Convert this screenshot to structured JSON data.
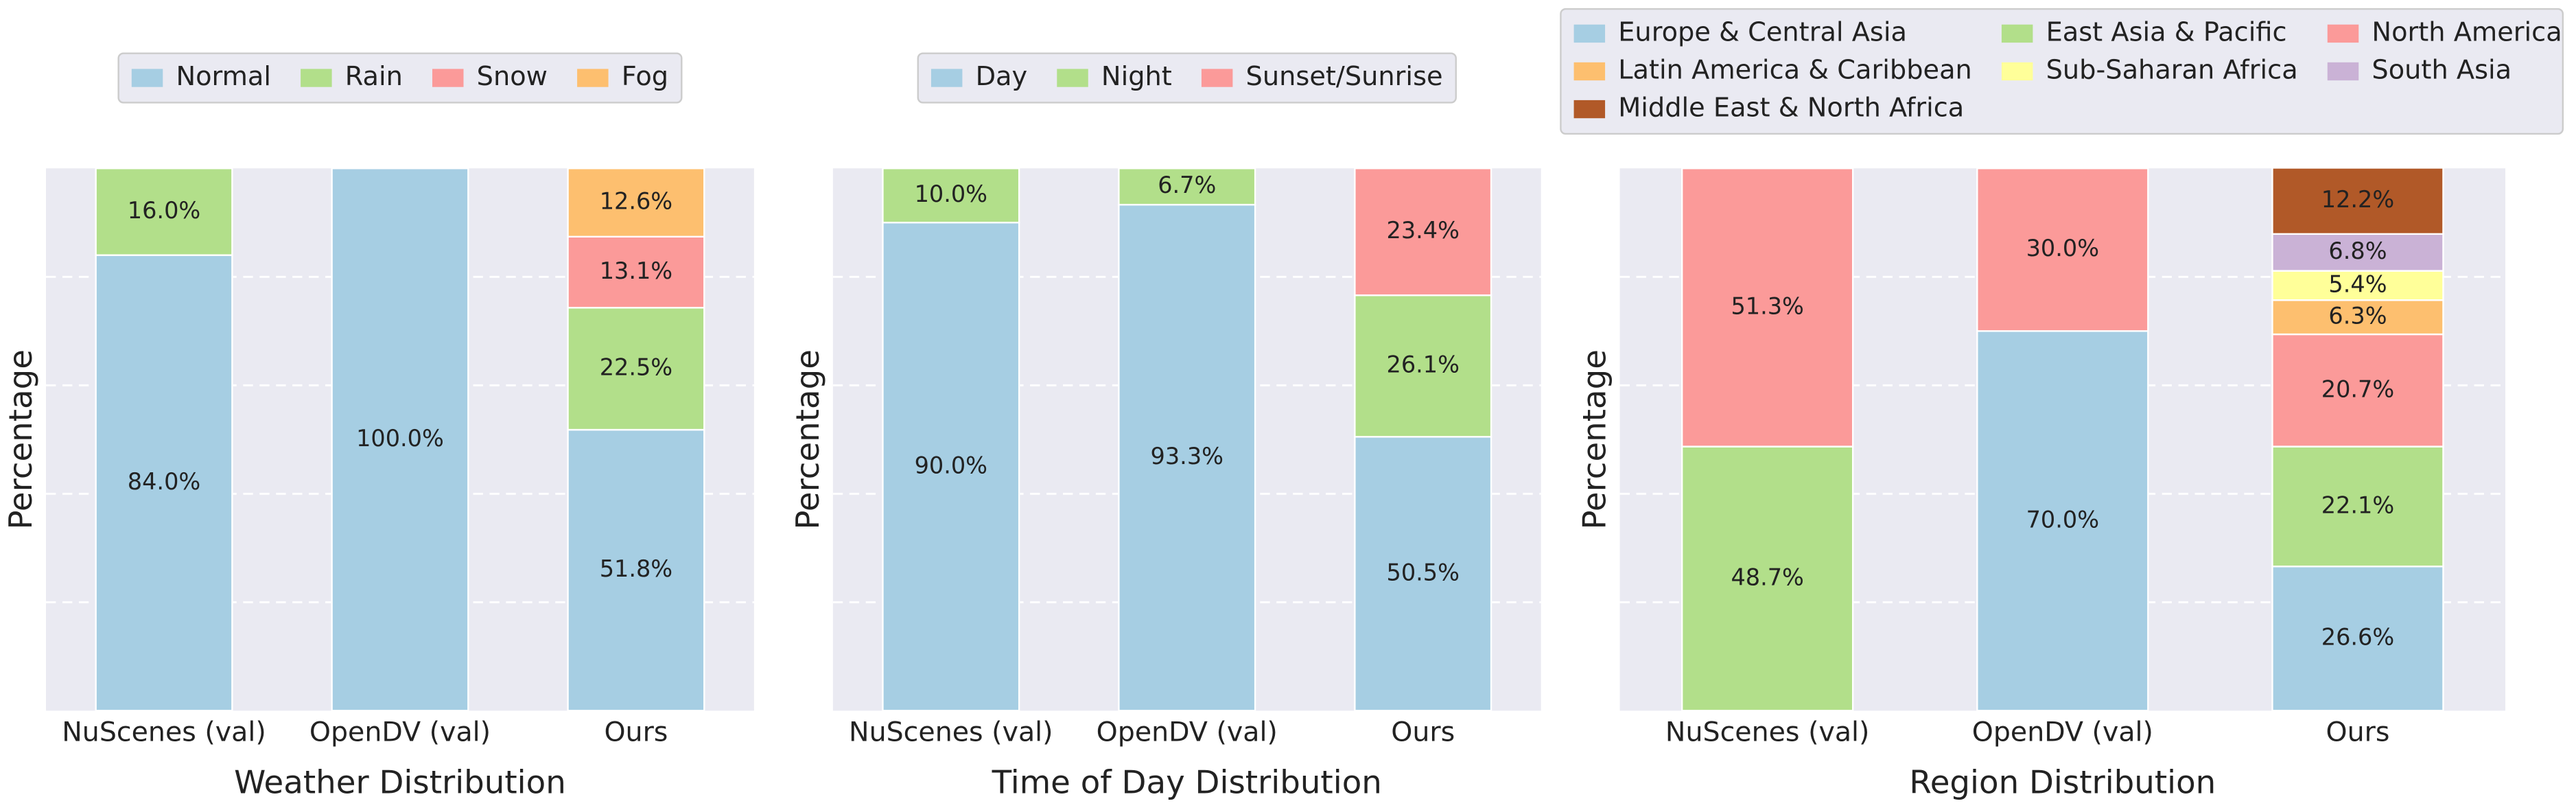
{
  "chart_data": [
    {
      "type": "bar",
      "stacked": true,
      "xlabel": "Weather Distribution",
      "ylabel": "Percentage",
      "categories": [
        "NuScenes (val)",
        "OpenDV (val)",
        "Ours"
      ],
      "ylim": [
        0,
        100
      ],
      "yticks": [
        20,
        40,
        60,
        80
      ],
      "show_ytick_labels": false,
      "grid": true,
      "legend_ncol": 4,
      "series": [
        {
          "name": "Normal",
          "color": "#a6cee3",
          "values": [
            84.0,
            100.0,
            51.8
          ],
          "value_labels": [
            "84.0%",
            "100.0%",
            "51.8%"
          ]
        },
        {
          "name": "Rain",
          "color": "#b2df8a",
          "values": [
            16.0,
            null,
            22.5
          ],
          "value_labels": [
            "16.0%",
            null,
            "22.5%"
          ]
        },
        {
          "name": "Snow",
          "color": "#fb9a99",
          "values": [
            null,
            null,
            13.1
          ],
          "value_labels": [
            null,
            null,
            "13.1%"
          ]
        },
        {
          "name": "Fog",
          "color": "#fdbf6f",
          "values": [
            null,
            null,
            12.6
          ],
          "value_labels": [
            null,
            null,
            "12.6%"
          ]
        }
      ]
    },
    {
      "type": "bar",
      "stacked": true,
      "xlabel": "Time of Day Distribution",
      "ylabel": "Percentage",
      "categories": [
        "NuScenes (val)",
        "OpenDV (val)",
        "Ours"
      ],
      "ylim": [
        0,
        100
      ],
      "yticks": [
        20,
        40,
        60,
        80
      ],
      "show_ytick_labels": false,
      "grid": true,
      "legend_ncol": 3,
      "series": [
        {
          "name": "Day",
          "color": "#a6cee3",
          "values": [
            90.0,
            93.3,
            50.5
          ],
          "value_labels": [
            "90.0%",
            "93.3%",
            "50.5%"
          ]
        },
        {
          "name": "Night",
          "color": "#b2df8a",
          "values": [
            10.0,
            6.7,
            26.1
          ],
          "value_labels": [
            "10.0%",
            "6.7%",
            "26.1%"
          ]
        },
        {
          "name": "Sunset/Sunrise",
          "color": "#fb9a99",
          "values": [
            null,
            null,
            23.4
          ],
          "value_labels": [
            null,
            null,
            "23.4%"
          ]
        }
      ]
    },
    {
      "type": "bar",
      "stacked": true,
      "xlabel": "Region Distribution",
      "ylabel": "Percentage",
      "categories": [
        "NuScenes (val)",
        "OpenDV (val)",
        "Ours"
      ],
      "ylim": [
        0,
        100
      ],
      "yticks": [
        20,
        40,
        60,
        80
      ],
      "show_ytick_labels": false,
      "grid": true,
      "legend_ncol": 3,
      "series": [
        {
          "name": "Europe & Central Asia",
          "color": "#a6cee3",
          "values": [
            null,
            70.0,
            26.6
          ],
          "value_labels": [
            null,
            "70.0%",
            "26.6%"
          ]
        },
        {
          "name": "East Asia & Pacific",
          "color": "#b2df8a",
          "values": [
            48.7,
            null,
            22.1
          ],
          "value_labels": [
            "48.7%",
            null,
            "22.1%"
          ]
        },
        {
          "name": "North America",
          "color": "#fb9a99",
          "values": [
            51.3,
            30.0,
            20.7
          ],
          "value_labels": [
            "51.3%",
            "30.0%",
            "20.7%"
          ]
        },
        {
          "name": "Latin America & Caribbean",
          "color": "#fdbf6f",
          "values": [
            null,
            null,
            6.3
          ],
          "value_labels": [
            null,
            null,
            "6.3%"
          ]
        },
        {
          "name": "Sub-Saharan Africa",
          "color": "#ffff99",
          "values": [
            null,
            null,
            5.4
          ],
          "value_labels": [
            null,
            null,
            "5.4%"
          ]
        },
        {
          "name": "South Asia",
          "color": "#cab2d6",
          "values": [
            null,
            null,
            6.8
          ],
          "value_labels": [
            null,
            null,
            "6.8%"
          ]
        },
        {
          "name": "Middle East & North Africa",
          "color": "#b15928",
          "values": [
            null,
            null,
            12.2
          ],
          "value_labels": [
            null,
            null,
            "12.2%"
          ]
        }
      ]
    }
  ]
}
